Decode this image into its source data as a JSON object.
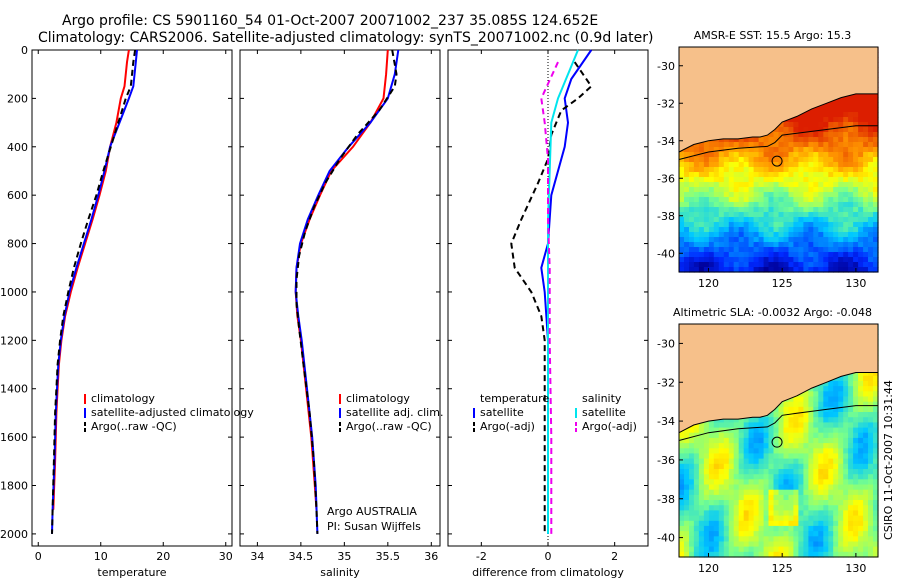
{
  "header": {
    "line1": "Argo profile: CS 5901160_54 01-Oct-2007 20071002_237 35.085S 124.652E",
    "line2": "Climatology: CARS2006. Satellite-adjusted climatology: synTS_20071002.nc (0.9d later)"
  },
  "chart_data": [
    {
      "type": "line",
      "xlabel": "temperature",
      "ylabel": "",
      "xlim": [
        -1,
        31
      ],
      "ylim": [
        0,
        2050
      ],
      "yreversed": true,
      "xticks": [
        "0",
        "10",
        "20",
        "30"
      ],
      "yticks": [
        "0",
        "200",
        "400",
        "600",
        "800",
        "1000",
        "1200",
        "1400",
        "1600",
        "1800",
        "2000"
      ],
      "legend": [
        "climatology",
        "satellite-adjusted climatology",
        "Argo(..raw -QC)"
      ],
      "series": [
        {
          "name": "climatology",
          "color": "#ff0000",
          "style": "solid",
          "points": [
            [
              14.5,
              0
            ],
            [
              14.2,
              50
            ],
            [
              13.8,
              150
            ],
            [
              13.2,
              200
            ],
            [
              12.5,
              300
            ],
            [
              11.5,
              400
            ],
            [
              10.8,
              500
            ],
            [
              9.8,
              600
            ],
            [
              8.7,
              700
            ],
            [
              7.5,
              800
            ],
            [
              6.3,
              900
            ],
            [
              5.2,
              1000
            ],
            [
              4.3,
              1100
            ],
            [
              3.7,
              1200
            ],
            [
              3.3,
              1300
            ],
            [
              3.1,
              1400
            ],
            [
              2.9,
              1500
            ],
            [
              2.7,
              1700
            ],
            [
              2.4,
              1900
            ]
          ]
        },
        {
          "name": "satellite-adjusted climatology",
          "color": "#0000ff",
          "style": "solid",
          "points": [
            [
              15.8,
              0
            ],
            [
              15.6,
              50
            ],
            [
              15.2,
              150
            ],
            [
              14.5,
              200
            ],
            [
              13.0,
              300
            ],
            [
              11.5,
              400
            ],
            [
              10.6,
              500
            ],
            [
              9.6,
              600
            ],
            [
              8.5,
              700
            ],
            [
              7.3,
              800
            ],
            [
              6.1,
              900
            ],
            [
              5.0,
              1000
            ],
            [
              4.2,
              1100
            ],
            [
              3.6,
              1200
            ],
            [
              3.2,
              1300
            ],
            [
              3.0,
              1400
            ],
            [
              2.8,
              1500
            ],
            [
              2.6,
              1700
            ],
            [
              2.3,
              1900
            ],
            [
              2.2,
              2000
            ]
          ]
        },
        {
          "name": "Argo(..raw -QC)",
          "color": "#000000",
          "style": "dashed",
          "points": [
            [
              15.5,
              0
            ],
            [
              15.2,
              50
            ],
            [
              14.8,
              150
            ],
            [
              14.0,
              200
            ],
            [
              12.8,
              300
            ],
            [
              11.6,
              400
            ],
            [
              10.4,
              500
            ],
            [
              9.3,
              600
            ],
            [
              8.0,
              700
            ],
            [
              6.8,
              800
            ],
            [
              5.7,
              900
            ],
            [
              4.8,
              1000
            ],
            [
              4.0,
              1100
            ],
            [
              3.5,
              1200
            ],
            [
              3.1,
              1300
            ],
            [
              2.9,
              1400
            ],
            [
              2.7,
              1500
            ],
            [
              2.5,
              1700
            ],
            [
              2.3,
              1900
            ],
            [
              2.2,
              2000
            ]
          ]
        }
      ]
    },
    {
      "type": "line",
      "xlabel": "salinity",
      "xlim": [
        33.8,
        36.1
      ],
      "ylim": [
        0,
        2050
      ],
      "yreversed": true,
      "xticks": [
        "34",
        "34.5",
        "35",
        "35.5",
        "36"
      ],
      "legend": [
        "climatology",
        "satellite adj. clim.",
        "Argo(..raw -QC)"
      ],
      "annotations": [
        "Argo AUSTRALIA",
        "PI: Susan Wijffels"
      ],
      "series": [
        {
          "name": "climatology",
          "color": "#ff0000",
          "style": "solid",
          "points": [
            [
              35.5,
              0
            ],
            [
              35.48,
              100
            ],
            [
              35.45,
              200
            ],
            [
              35.3,
              300
            ],
            [
              35.1,
              400
            ],
            [
              34.85,
              500
            ],
            [
              34.72,
              600
            ],
            [
              34.6,
              700
            ],
            [
              34.5,
              800
            ],
            [
              34.45,
              900
            ],
            [
              34.44,
              1000
            ],
            [
              34.46,
              1100
            ],
            [
              34.5,
              1200
            ],
            [
              34.56,
              1400
            ],
            [
              34.62,
              1600
            ],
            [
              34.66,
              1800
            ],
            [
              34.68,
              1900
            ]
          ]
        },
        {
          "name": "satellite adj. clim.",
          "color": "#0000ff",
          "style": "solid",
          "points": [
            [
              35.62,
              0
            ],
            [
              35.58,
              100
            ],
            [
              35.5,
              200
            ],
            [
              35.3,
              300
            ],
            [
              35.05,
              400
            ],
            [
              34.83,
              500
            ],
            [
              34.7,
              600
            ],
            [
              34.58,
              700
            ],
            [
              34.49,
              800
            ],
            [
              34.45,
              900
            ],
            [
              34.44,
              1000
            ],
            [
              34.47,
              1100
            ],
            [
              34.51,
              1200
            ],
            [
              34.57,
              1400
            ],
            [
              34.63,
              1600
            ],
            [
              34.67,
              1800
            ],
            [
              34.69,
              2000
            ]
          ]
        },
        {
          "name": "Argo(..raw -QC)",
          "color": "#000000",
          "style": "dashed",
          "points": [
            [
              35.55,
              0
            ],
            [
              35.6,
              100
            ],
            [
              35.58,
              150
            ],
            [
              35.4,
              250
            ],
            [
              35.15,
              350
            ],
            [
              34.95,
              450
            ],
            [
              34.78,
              550
            ],
            [
              34.65,
              650
            ],
            [
              34.55,
              750
            ],
            [
              34.48,
              850
            ],
            [
              34.45,
              950
            ],
            [
              34.45,
              1050
            ],
            [
              34.48,
              1150
            ],
            [
              34.53,
              1300
            ],
            [
              34.6,
              1500
            ],
            [
              34.65,
              1700
            ],
            [
              34.68,
              1900
            ],
            [
              34.69,
              2000
            ]
          ]
        }
      ]
    },
    {
      "type": "line",
      "xlabel": "difference from climatology",
      "xlim": [
        -3,
        3
      ],
      "ylim": [
        0,
        2050
      ],
      "yreversed": true,
      "xticks": [
        "-2",
        "0",
        "2"
      ],
      "legend": [
        "temperature",
        "satellite",
        "Argo(-adj)",
        "salinity",
        "satellite",
        "Argo(-adj)"
      ],
      "series": [
        {
          "name": "temperature satellite",
          "color": "#0000ff",
          "style": "solid",
          "points": [
            [
              1.3,
              0
            ],
            [
              1.0,
              60
            ],
            [
              0.7,
              120
            ],
            [
              0.5,
              200
            ],
            [
              0.6,
              300
            ],
            [
              0.5,
              400
            ],
            [
              0.1,
              600
            ],
            [
              0.0,
              800
            ],
            [
              -0.2,
              900
            ],
            [
              -0.1,
              1000
            ],
            [
              0.0,
              1200
            ],
            [
              0.0,
              1500
            ],
            [
              0.0,
              1800
            ],
            [
              0.0,
              2000
            ]
          ]
        },
        {
          "name": "temperature Argo(-adj)",
          "color": "#000000",
          "style": "dashed",
          "points": [
            [
              0.8,
              50
            ],
            [
              1.3,
              150
            ],
            [
              0.9,
              200
            ],
            [
              0.4,
              250
            ],
            [
              0.1,
              350
            ],
            [
              0.0,
              450
            ],
            [
              -0.3,
              550
            ],
            [
              -0.8,
              700
            ],
            [
              -1.1,
              800
            ],
            [
              -1.0,
              900
            ],
            [
              -0.5,
              1000
            ],
            [
              -0.2,
              1100
            ],
            [
              -0.1,
              1200
            ],
            [
              -0.1,
              1500
            ],
            [
              -0.1,
              1800
            ],
            [
              -0.1,
              2000
            ]
          ]
        },
        {
          "name": "salinity satellite",
          "color": "#00e5ee",
          "style": "solid",
          "points": [
            [
              0.9,
              0
            ],
            [
              0.6,
              100
            ],
            [
              0.3,
              200
            ],
            [
              0.1,
              300
            ],
            [
              0.05,
              500
            ],
            [
              0.0,
              700
            ],
            [
              0.0,
              1000
            ],
            [
              0.0,
              1300
            ],
            [
              0.0,
              1600
            ],
            [
              0.0,
              1900
            ],
            [
              0.0,
              2000
            ]
          ]
        },
        {
          "name": "salinity Argo(-adj)",
          "color": "#ee00ee",
          "style": "dashed",
          "points": [
            [
              0.3,
              50
            ],
            [
              -0.2,
              200
            ],
            [
              -0.1,
              300
            ],
            [
              0.0,
              450
            ],
            [
              0.0,
              700
            ],
            [
              0.05,
              900
            ],
            [
              0.05,
              1200
            ],
            [
              0.1,
              1600
            ],
            [
              0.1,
              2000
            ]
          ]
        }
      ]
    },
    {
      "type": "heatmap",
      "title": "AMSR-E SST: 15.5 Argo: 15.3",
      "xticks": [
        "120",
        "125",
        "130"
      ],
      "yticks": [
        "-30",
        "-32",
        "-34",
        "-36",
        "-38",
        "-40"
      ],
      "xlim": [
        118,
        131.5
      ],
      "ylim": [
        -41,
        -29
      ],
      "marker": {
        "lon": 124.652,
        "lat": -35.085
      }
    },
    {
      "type": "heatmap",
      "title": "Altimetric SLA: -0.0032 Argo: -0.048",
      "xticks": [
        "120",
        "125",
        "130"
      ],
      "yticks": [
        "-30",
        "-32",
        "-34",
        "-36",
        "-38",
        "-40"
      ],
      "xlim": [
        118,
        131.5
      ],
      "ylim": [
        -41,
        -29
      ],
      "marker": {
        "lon": 124.652,
        "lat": -35.085
      }
    }
  ],
  "side_label": "CSIRO 11-Oct-2007 10:31:44",
  "colors": {
    "land": "#f6c08a",
    "coast": "#000000",
    "axes": "#000000",
    "zero_line": "#000000"
  }
}
